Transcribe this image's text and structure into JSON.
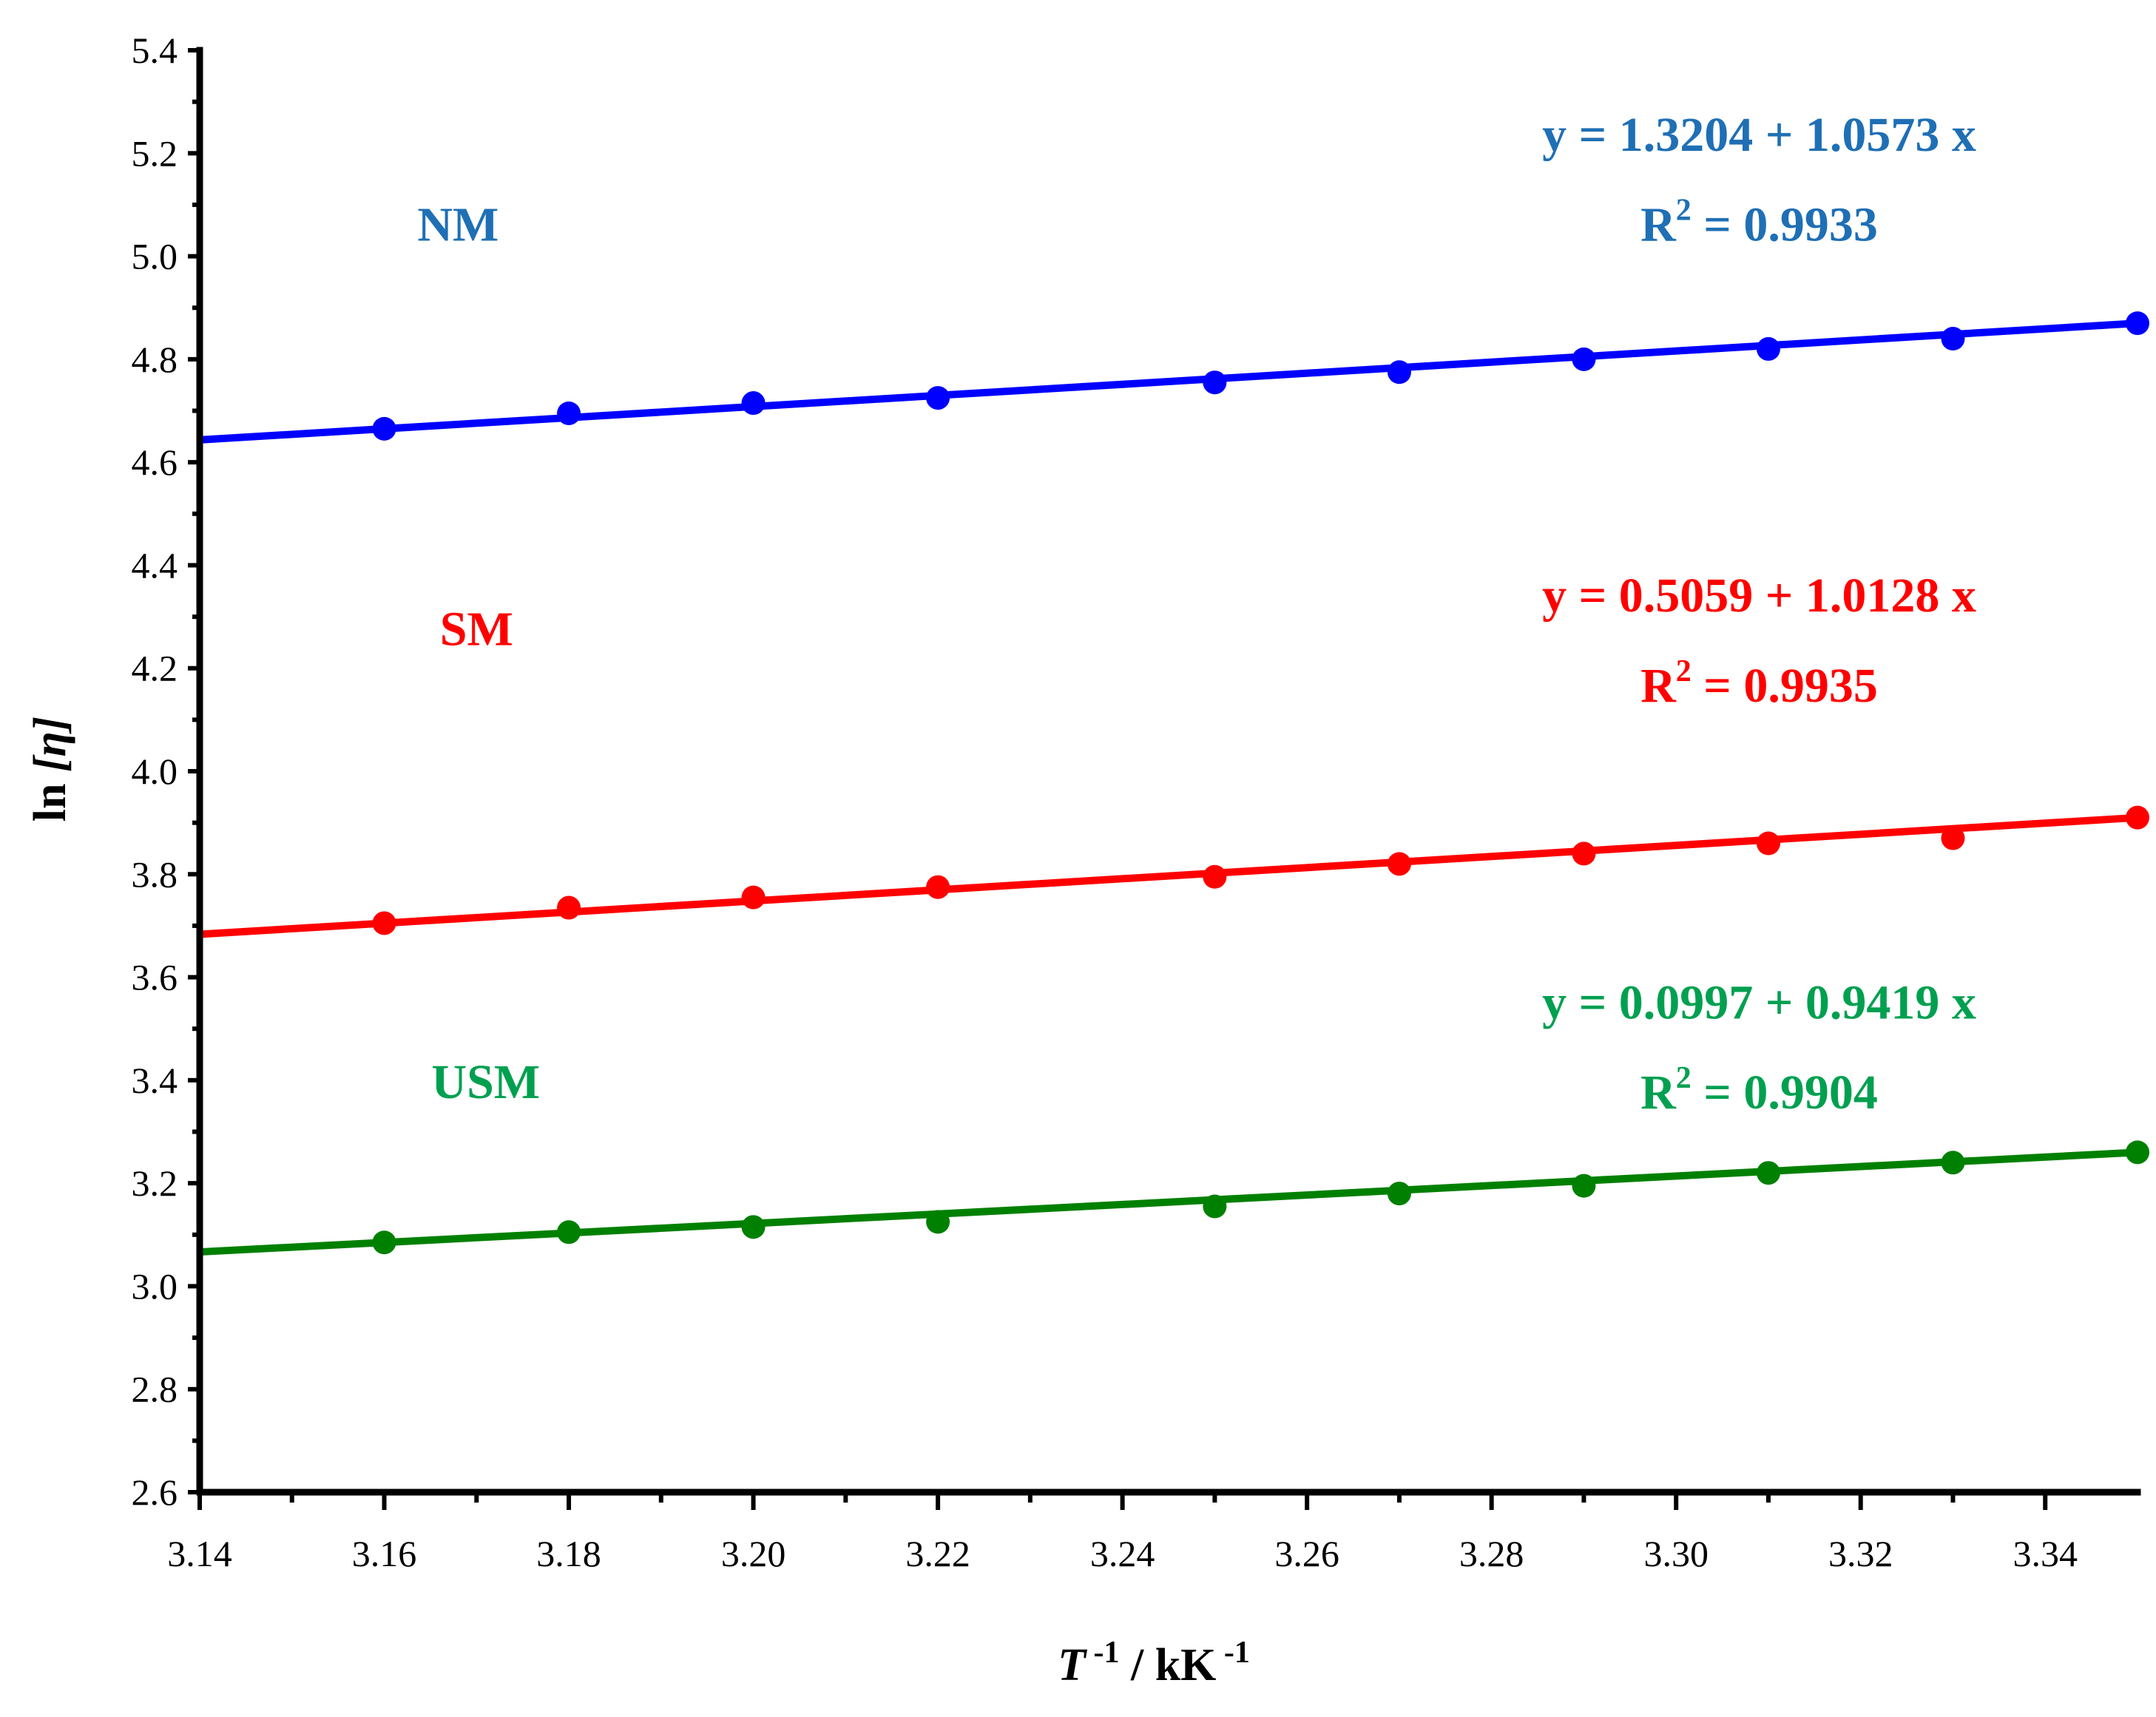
{
  "chart_data": {
    "type": "scatter",
    "xlabel": {
      "main": "T",
      "sup1": " -1",
      "mid": " / kK",
      "sup2": " -1"
    },
    "ylabel": {
      "main": "ln ",
      "italic": "[η]"
    },
    "xlim": [
      3.14,
      3.35
    ],
    "ylim": [
      2.6,
      5.4
    ],
    "x_ticks": [
      "3.14",
      "3.16",
      "3.18",
      "3.20",
      "3.22",
      "3.24",
      "3.26",
      "3.28",
      "3.30",
      "3.32",
      "3.34"
    ],
    "y_ticks": [
      "2.6",
      "2.8",
      "3.0",
      "3.2",
      "3.4",
      "3.6",
      "3.8",
      "4.0",
      "4.2",
      "4.4",
      "4.6",
      "4.8",
      "5.0",
      "5.2",
      "5.4"
    ],
    "x": [
      3.16,
      3.18,
      3.2,
      3.22,
      3.25,
      3.27,
      3.29,
      3.31,
      3.33,
      3.35
    ],
    "series": [
      {
        "name": "NM",
        "color": "#0000ff",
        "label_color": "#1f6fb5",
        "values": [
          4.665,
          4.695,
          4.715,
          4.725,
          4.755,
          4.775,
          4.8,
          4.82,
          4.84,
          4.87
        ],
        "fit": {
          "intercept": 1.3204,
          "slope": 1.0573
        },
        "equation": "y = 1.3204 + 1.0573 x",
        "r2_label": "R",
        "r2_sup": "2",
        "r2_value": " = 0.9933"
      },
      {
        "name": "SM",
        "color": "#ff0000",
        "label_color": "#ff0000",
        "values": [
          3.705,
          3.735,
          3.755,
          3.775,
          3.795,
          3.82,
          3.84,
          3.86,
          3.87,
          3.91
        ],
        "fit": {
          "intercept": 0.5059,
          "slope": 1.0128
        },
        "equation": "y = 0.5059 + 1.0128 x",
        "r2_label": "R",
        "r2_sup": "2",
        "r2_value": " = 0.9935"
      },
      {
        "name": "USM",
        "color": "#008000",
        "label_color": "#00a050",
        "values": [
          3.085,
          3.105,
          3.115,
          3.125,
          3.155,
          3.18,
          3.195,
          3.22,
          3.24,
          3.26
        ],
        "fit": {
          "intercept": 0.0997,
          "slope": 0.9419
        },
        "equation": "y = 0.0997 + 0.9419 x",
        "r2_label": "R",
        "r2_sup": "2",
        "r2_value": " = 0.9904"
      }
    ]
  }
}
